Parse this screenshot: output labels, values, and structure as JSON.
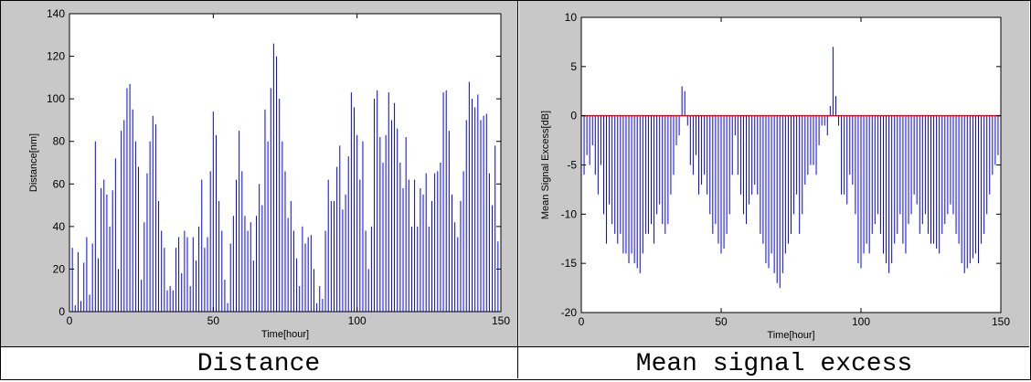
{
  "chart_data": [
    {
      "type": "bar",
      "caption": "Distance",
      "xlabel": "Time[hour]",
      "ylabel": "Distance[nm]",
      "xlim": [
        0,
        150
      ],
      "ylim": [
        0,
        140
      ],
      "xticks": [
        "0",
        "50",
        "100",
        "150"
      ],
      "yticks": [
        "0",
        "20",
        "40",
        "60",
        "80",
        "100",
        "120",
        "140"
      ],
      "grid": false,
      "background": "#c8c8c8",
      "bar_color": "#0000ff",
      "series": [
        {
          "x": [
            0,
            1,
            2,
            3,
            4,
            5,
            6,
            7,
            8,
            9,
            10,
            11,
            12,
            13,
            14,
            15,
            16,
            17,
            18,
            19,
            20,
            21,
            22,
            23,
            24,
            25,
            26,
            27,
            28,
            29,
            30,
            31,
            32,
            33,
            34,
            35,
            36,
            37,
            38,
            39,
            40,
            41,
            42,
            43,
            44,
            45,
            46,
            47,
            48,
            49,
            50,
            51,
            52,
            53,
            54,
            55,
            56,
            57,
            58,
            59,
            60,
            61,
            62,
            63,
            64,
            65,
            66,
            67,
            68,
            69,
            70,
            71,
            72,
            73,
            74,
            75,
            76,
            77,
            78,
            79,
            80,
            81,
            82,
            83,
            84,
            85,
            86,
            87,
            88,
            89,
            90,
            91,
            92,
            93,
            94,
            95,
            96,
            97,
            98,
            99,
            100,
            101,
            102,
            103,
            104,
            105,
            106,
            107,
            108,
            109,
            110,
            111,
            112,
            113,
            114,
            115,
            116,
            117,
            118,
            119,
            120,
            121,
            122,
            123,
            124,
            125,
            126,
            127,
            128,
            129,
            130,
            131,
            132,
            133,
            134,
            135,
            136,
            137,
            138,
            139,
            140,
            141,
            142,
            143,
            144,
            145,
            146,
            147,
            148,
            149
          ],
          "y": [
            34,
            30,
            3,
            28,
            5,
            23,
            35,
            8,
            32,
            80,
            25,
            58,
            62,
            55,
            40,
            57,
            72,
            20,
            85,
            90,
            105,
            107,
            95,
            80,
            68,
            15,
            42,
            65,
            80,
            92,
            88,
            52,
            38,
            30,
            10,
            12,
            10,
            30,
            35,
            18,
            38,
            35,
            12,
            35,
            24,
            40,
            62,
            30,
            35,
            66,
            94,
            83,
            52,
            38,
            15,
            4,
            32,
            45,
            62,
            85,
            66,
            45,
            38,
            42,
            24,
            45,
            60,
            50,
            95,
            80,
            105,
            126,
            120,
            100,
            80,
            66,
            44,
            52,
            38,
            25,
            12,
            40,
            32,
            35,
            36,
            20,
            4,
            12,
            6,
            38,
            62,
            52,
            52,
            68,
            78,
            48,
            55,
            73,
            103,
            96,
            83,
            62,
            80,
            38,
            20,
            40,
            100,
            104,
            82,
            70,
            83,
            103,
            90,
            98,
            86,
            70,
            58,
            82,
            62,
            40,
            62,
            40,
            58,
            55,
            65,
            40,
            52,
            65,
            66,
            70,
            103,
            104,
            85,
            55,
            42,
            35,
            52,
            66,
            90,
            108,
            100,
            96,
            102,
            90,
            92,
            93,
            65,
            50,
            78,
            33
          ]
        }
      ]
    },
    {
      "type": "bar",
      "caption": "Mean signal excess",
      "xlabel": "Time[hour]",
      "ylabel": "Mean Signal Excess[dB]",
      "xlim": [
        0,
        150
      ],
      "ylim": [
        -20,
        10
      ],
      "xticks": [
        "0",
        "50",
        "100",
        "150"
      ],
      "yticks": [
        "-20",
        "-15",
        "-10",
        "-5",
        "0",
        "5",
        "10"
      ],
      "grid": false,
      "background": "#c8c8c8",
      "bar_color": "#0000ff",
      "reference_line": {
        "y": 0,
        "color": "#ff0000"
      },
      "series": [
        {
          "x": [
            0,
            1,
            2,
            3,
            4,
            5,
            6,
            7,
            8,
            9,
            10,
            11,
            12,
            13,
            14,
            15,
            16,
            17,
            18,
            19,
            20,
            21,
            22,
            23,
            24,
            25,
            26,
            27,
            28,
            29,
            30,
            31,
            32,
            33,
            34,
            35,
            36,
            37,
            38,
            39,
            40,
            41,
            42,
            43,
            44,
            45,
            46,
            47,
            48,
            49,
            50,
            51,
            52,
            53,
            54,
            55,
            56,
            57,
            58,
            59,
            60,
            61,
            62,
            63,
            64,
            65,
            66,
            67,
            68,
            69,
            70,
            71,
            72,
            73,
            74,
            75,
            76,
            77,
            78,
            79,
            80,
            81,
            82,
            83,
            84,
            85,
            86,
            87,
            88,
            89,
            90,
            91,
            92,
            93,
            94,
            95,
            96,
            97,
            98,
            99,
            100,
            101,
            102,
            103,
            104,
            105,
            106,
            107,
            108,
            109,
            110,
            111,
            112,
            113,
            114,
            115,
            116,
            117,
            118,
            119,
            120,
            121,
            122,
            123,
            124,
            125,
            126,
            127,
            128,
            129,
            130,
            131,
            132,
            133,
            134,
            135,
            136,
            137,
            138,
            139,
            140,
            141,
            142,
            143,
            144,
            145,
            146,
            147,
            148,
            149
          ],
          "y": [
            -3,
            -6,
            -4,
            -5,
            -3,
            -6,
            -8,
            -5,
            -10,
            -13,
            -9,
            -11,
            -12,
            -13,
            -12,
            -14,
            -14,
            -15,
            -14,
            -15,
            -15.5,
            -16,
            -14,
            -12,
            -12,
            -11,
            -13,
            -10,
            -9,
            -11,
            -12,
            -11,
            -8,
            -6,
            -3,
            -2,
            3,
            2.5,
            -1,
            -5,
            -6,
            -4,
            -8,
            -7,
            -6,
            -8,
            -10,
            -12,
            -11,
            -13,
            -14,
            -13.5,
            -12,
            -10,
            -6,
            -2,
            -6,
            -8,
            -10,
            -11,
            -9,
            -8,
            -7,
            -8,
            -12,
            -13,
            -15,
            -15.5,
            -14,
            -16,
            -17,
            -17.5,
            -16,
            -14,
            -13,
            -12,
            -10,
            -8,
            -12,
            -10,
            -7,
            -6,
            -5,
            -5,
            -6,
            -3,
            -1,
            -1,
            -2,
            1,
            7,
            2,
            -1,
            -8,
            -8,
            -9,
            -6,
            -7,
            -10,
            -15,
            -15.5,
            -14,
            -13,
            -14,
            -12,
            -11,
            -10,
            -12,
            -14,
            -15,
            -16,
            -15,
            -13,
            -12,
            -10,
            -13,
            -14,
            -11,
            -10,
            -8,
            -9,
            -12,
            -11,
            -10,
            -12,
            -13,
            -13,
            -13.5,
            -14,
            -12,
            -11,
            -10,
            -9,
            -10,
            -12,
            -13,
            -15,
            -16,
            -15.5,
            -15,
            -14.5,
            -14,
            -15,
            -13,
            -12,
            -10,
            -8,
            -6,
            -5,
            -4
          ]
        }
      ]
    }
  ]
}
